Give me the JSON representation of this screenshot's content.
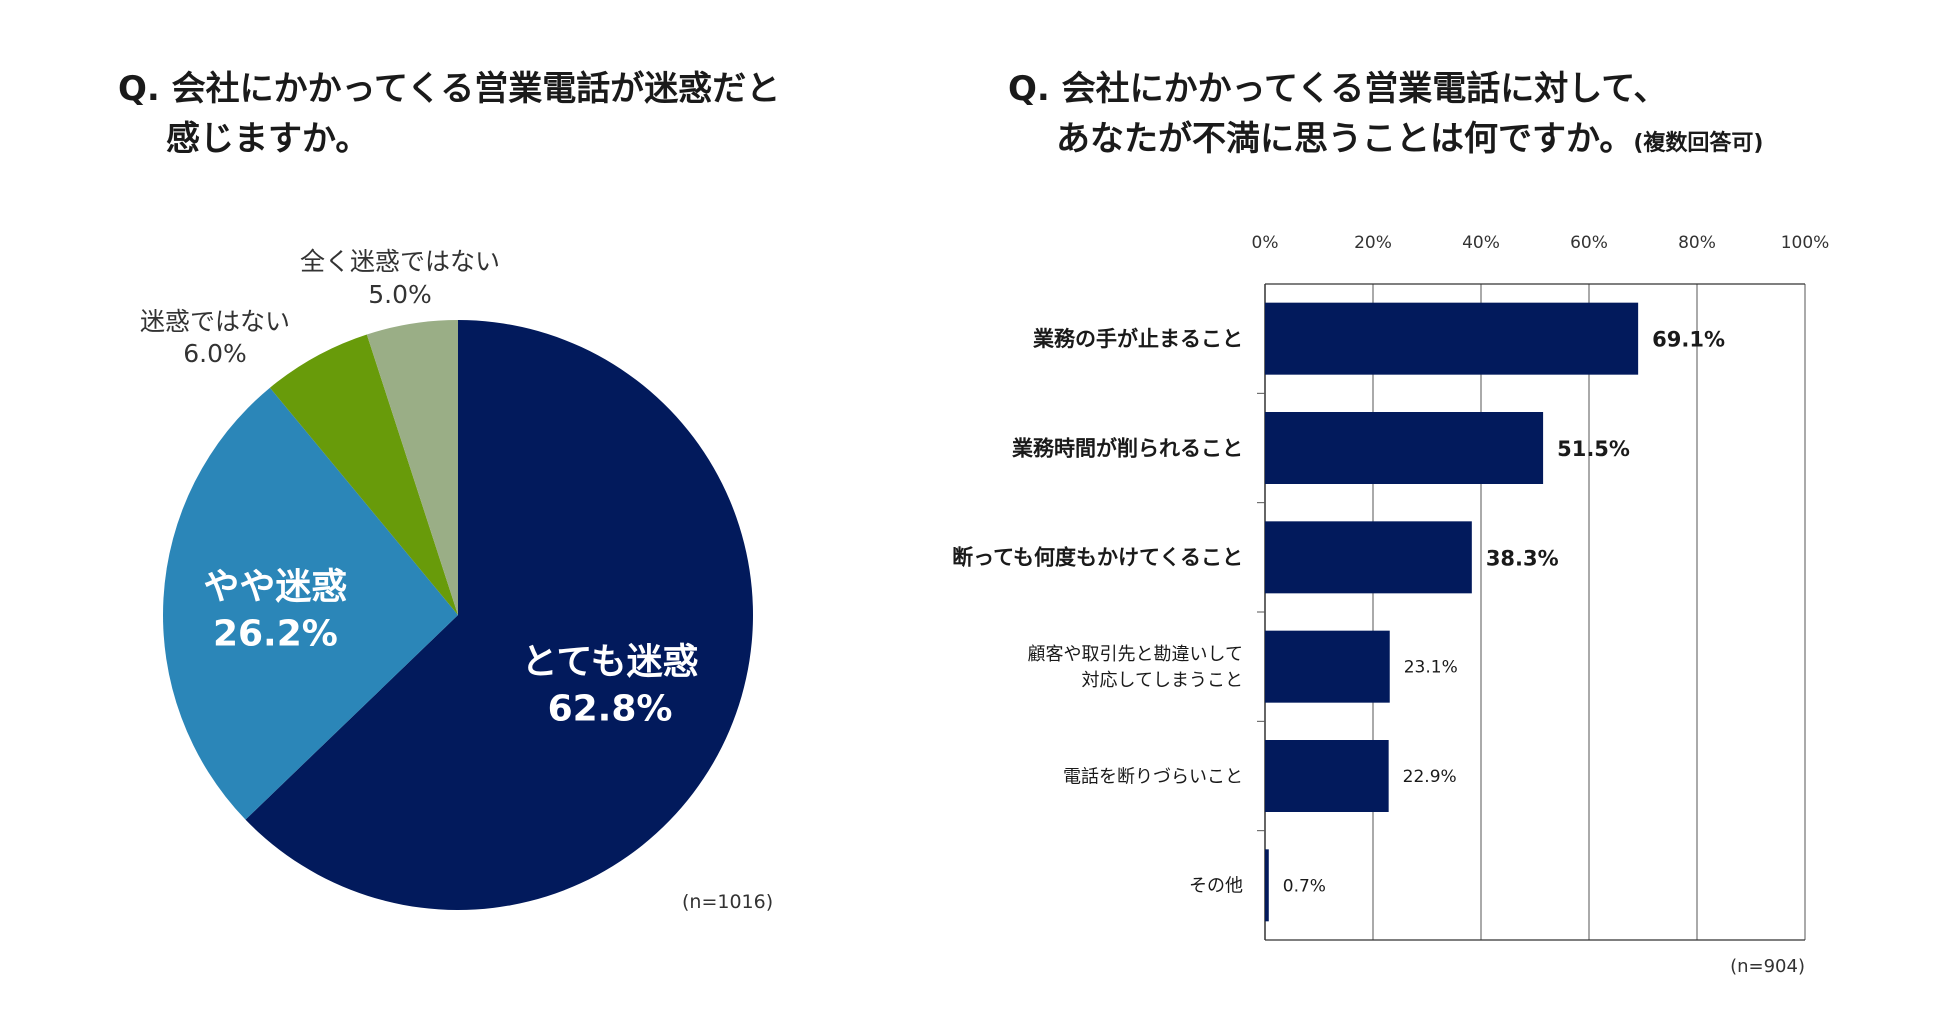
{
  "left_title": {
    "line1": "Q. 会社にかかってくる営業電話が迷惑だと",
    "line2": "感じますか。"
  },
  "right_title": {
    "line1": "Q. 会社にかかってくる営業電話に対して、",
    "line2": "あなたが不満に思うことは何ですか。",
    "suffix": "(複数回答可)"
  },
  "chart_data": [
    {
      "type": "pie",
      "slices": [
        {
          "label": "とても迷惑",
          "value": 62.8,
          "display": "62.8%",
          "color": "#021a5c",
          "text_color": "#ffffff",
          "label_inside": true
        },
        {
          "label": "やや迷惑",
          "value": 26.2,
          "display": "26.2%",
          "color": "#2b86b8",
          "text_color": "#ffffff",
          "label_inside": true
        },
        {
          "label": "迷惑ではない",
          "value": 6.0,
          "display": "6.0%",
          "color": "#689b0a",
          "text_color": "#333333",
          "label_inside": false
        },
        {
          "label": "全く迷惑ではない",
          "value": 5.0,
          "display": "5.0%",
          "color": "#9aae86",
          "text_color": "#333333",
          "label_inside": false
        }
      ],
      "start": "12 o'clock",
      "direction": "clockwise",
      "note": "(n=1016)"
    },
    {
      "type": "bar",
      "orientation": "horizontal",
      "categories": [
        "業務の手が止まること",
        "業務時間が削られること",
        "断っても何度もかけてくること",
        "顧客や取引先と勘違いして\n対応してしまうこと",
        "電話を断りづらいこと",
        "その他"
      ],
      "values": [
        69.1,
        51.5,
        38.3,
        23.1,
        22.9,
        0.7
      ],
      "value_labels": [
        "69.1%",
        "51.5%",
        "38.3%",
        "23.1%",
        "22.9%",
        "0.7%"
      ],
      "bold": [
        true,
        true,
        true,
        false,
        false,
        false
      ],
      "xlim": [
        0,
        100
      ],
      "xticks": [
        "0%",
        "20%",
        "40%",
        "60%",
        "80%",
        "100%"
      ],
      "grid": true,
      "bar_color": "#021a5c",
      "note": "(n=904)"
    }
  ]
}
